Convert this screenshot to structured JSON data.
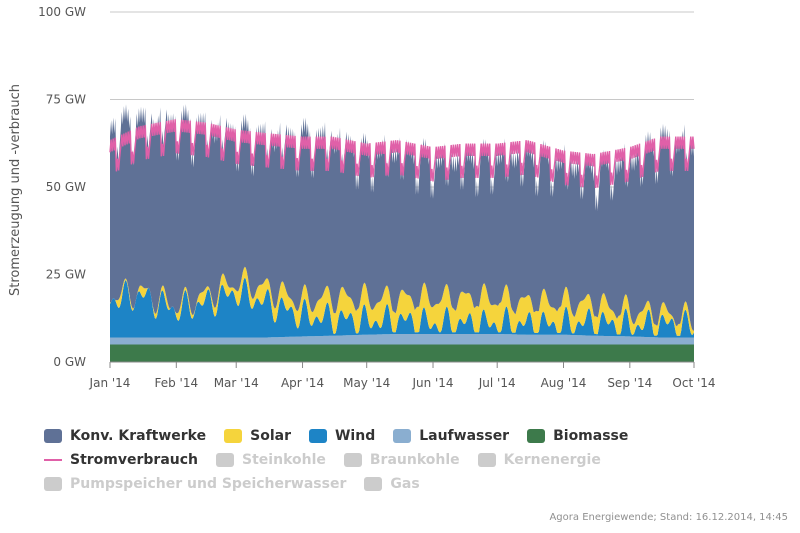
{
  "chart_data": {
    "type": "area",
    "title": "",
    "ylabel": "Stromerzeugung und -verbrauch",
    "xlabel": "",
    "ylim": [
      0,
      100
    ],
    "x_range": [
      "2014-01-01",
      "2014-10-01"
    ],
    "y_ticks": [
      "0 GW",
      "25 GW",
      "50 GW",
      "75 GW",
      "100 GW"
    ],
    "x_ticks": [
      {
        "date": "2014-01-01",
        "label": "Jan '14"
      },
      {
        "date": "2014-02-01",
        "label": "Feb '14"
      },
      {
        "date": "2014-03-01",
        "label": "Mar '14"
      },
      {
        "date": "2014-04-01",
        "label": "Apr '14"
      },
      {
        "date": "2014-05-01",
        "label": "May '14"
      },
      {
        "date": "2014-06-01",
        "label": "Jun '14"
      },
      {
        "date": "2014-07-01",
        "label": "Jul '14"
      },
      {
        "date": "2014-08-01",
        "label": "Aug '14"
      },
      {
        "date": "2014-09-01",
        "label": "Sep '14"
      },
      {
        "date": "2014-10-01",
        "label": "Oct '14"
      }
    ],
    "grid": "horizontal",
    "stacked": true,
    "series_dates": [
      "2014-01-01",
      "2014-01-15",
      "2014-02-01",
      "2014-02-15",
      "2014-03-01",
      "2014-03-15",
      "2014-04-01",
      "2014-04-15",
      "2014-05-01",
      "2014-05-15",
      "2014-06-01",
      "2014-06-15",
      "2014-07-01",
      "2014-07-15",
      "2014-08-01",
      "2014-08-15",
      "2014-09-01",
      "2014-09-15",
      "2014-10-01"
    ],
    "series": [
      {
        "name": "Biomasse",
        "color": "#3d7a4b",
        "values": [
          5,
          5,
          5,
          5,
          5,
          5,
          5,
          5,
          5,
          5,
          5,
          5,
          5,
          5,
          5,
          5,
          5,
          5,
          5
        ]
      },
      {
        "name": "Laufwasser",
        "color": "#8aaed0",
        "values": [
          2,
          2,
          2,
          2,
          2,
          2,
          2.3,
          2.5,
          2.8,
          3,
          3,
          3,
          3,
          2.8,
          2.8,
          2.5,
          2.3,
          2,
          2
        ]
      },
      {
        "name": "Wind",
        "color": "#1d84c6",
        "values": [
          11,
          12,
          8,
          10,
          13,
          10,
          6,
          5,
          4,
          4,
          3,
          3,
          3,
          3,
          3,
          4,
          3,
          4,
          3
        ]
      },
      {
        "name": "Solar",
        "color": "#f5d43c",
        "values": [
          1,
          1,
          1,
          2,
          3,
          4,
          4,
          6,
          6,
          6,
          7,
          7,
          7,
          6,
          6,
          5,
          4,
          3,
          2
        ]
      },
      {
        "name": "Konv. Kraftwerke",
        "color": "#5f7196",
        "values": [
          49,
          50,
          52,
          49,
          45,
          45,
          47,
          46,
          42,
          43,
          40,
          40,
          41,
          42,
          40,
          38,
          42,
          48,
          48
        ]
      }
    ],
    "line_series": {
      "name": "Stromverbrauch",
      "color": "#e060a8",
      "values": [
        62,
        66,
        68,
        67,
        65,
        64,
        63,
        63,
        61,
        62,
        60,
        61,
        61,
        62,
        59,
        58,
        60,
        63,
        63
      ]
    },
    "legend_position": "bottom-left"
  },
  "legend": {
    "row1": [
      {
        "label": "Konv. Kraftwerke",
        "color": "#5f7196",
        "kind": "area",
        "visible": true
      },
      {
        "label": "Solar",
        "color": "#f5d43c",
        "kind": "area",
        "visible": true
      },
      {
        "label": "Wind",
        "color": "#1d84c6",
        "kind": "area",
        "visible": true
      },
      {
        "label": "Laufwasser",
        "color": "#8aaed0",
        "kind": "area",
        "visible": true
      },
      {
        "label": "Biomasse",
        "color": "#3d7a4b",
        "kind": "area",
        "visible": true
      }
    ],
    "row2": [
      {
        "label": "Stromverbrauch",
        "color": "#e060a8",
        "kind": "line",
        "visible": true
      },
      {
        "label": "Steinkohle",
        "color": "#cccccc",
        "kind": "area",
        "visible": false
      },
      {
        "label": "Braunkohle",
        "color": "#cccccc",
        "kind": "area",
        "visible": false
      },
      {
        "label": "Kernenergie",
        "color": "#cccccc",
        "kind": "area",
        "visible": false
      }
    ],
    "row3": [
      {
        "label": "Pumpspeicher und Speicherwasser",
        "color": "#cccccc",
        "kind": "area",
        "visible": false
      },
      {
        "label": "Gas",
        "color": "#cccccc",
        "kind": "area",
        "visible": false
      }
    ]
  },
  "credit": "Agora Energiewende; Stand: 16.12.2014, 14:45"
}
